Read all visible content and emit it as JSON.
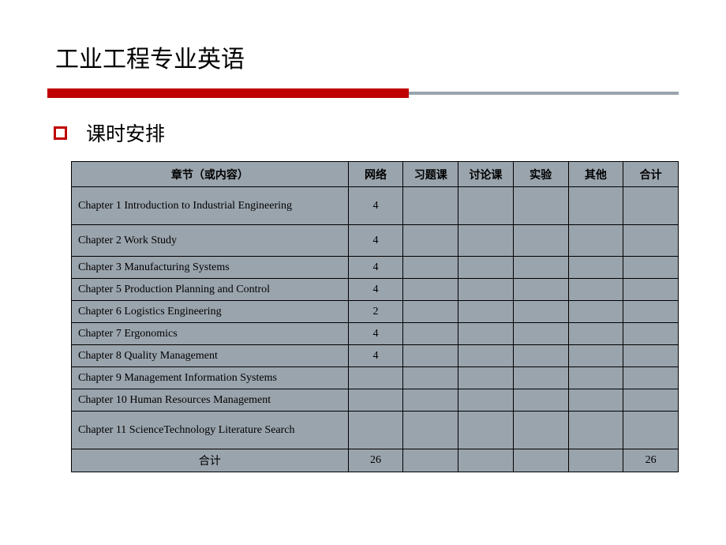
{
  "title": "工业工程专业英语",
  "subtitle": "课时安排",
  "headers": [
    "章节（或内容）",
    "网络",
    "习题课",
    "讨论课",
    "实验",
    "其他",
    "合计"
  ],
  "rows": [
    {
      "chapter": "Chapter 1 Introduction to Industrial Engineering",
      "net": "4",
      "tall": true
    },
    {
      "chapter": "Chapter 2 Work Study",
      "net": "4",
      "mid": true
    },
    {
      "chapter": "Chapter 3 Manufacturing Systems",
      "net": "4"
    },
    {
      "chapter": "Chapter 5 Production Planning and Control",
      "net": "4"
    },
    {
      "chapter": "Chapter 6 Logistics Engineering",
      "net": "2"
    },
    {
      "chapter": "Chapter 7 Ergonomics",
      "net": "4"
    },
    {
      "chapter": "Chapter 8 Quality Management",
      "net": "4"
    },
    {
      "chapter": "Chapter 9 Management Information Systems",
      "net": ""
    },
    {
      "chapter": "Chapter 10 Human Resources Management",
      "net": ""
    },
    {
      "chapter": "Chapter 11 ScienceTechnology Literature Search",
      "net": "",
      "tall": true
    }
  ],
  "footer": {
    "label": "合计",
    "net": "26",
    "total": "26"
  },
  "colors": {
    "accent_red": "#c00000",
    "cell_bg": "#9aa4ad",
    "bar_grey": "#9aa4ad",
    "border": "#000000",
    "background": "#ffffff"
  }
}
